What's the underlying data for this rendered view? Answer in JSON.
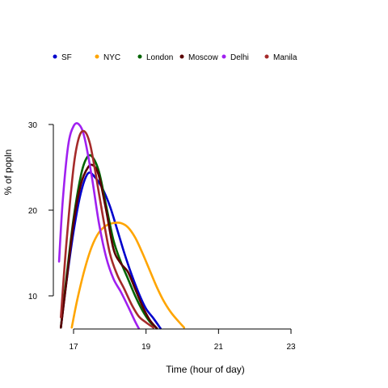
{
  "chart_data": {
    "type": "line",
    "title": "",
    "xlabel": "Time (hour of day)",
    "ylabel": "% of popln",
    "xlim": [
      16.6,
      23
    ],
    "ylim": [
      6.2,
      30.5
    ],
    "xticks": [
      17,
      19,
      21,
      23
    ],
    "yticks": [
      10,
      20,
      30
    ],
    "grid": false,
    "legend_position": "top",
    "series": [
      {
        "name": "SF",
        "color": "#0000cc",
        "x": [
          16.65,
          16.8,
          17.0,
          17.2,
          17.4,
          17.6,
          17.8,
          18.0,
          18.2,
          18.4,
          18.6,
          18.8,
          19.0,
          19.2,
          19.4
        ],
        "y": [
          6.3,
          11.5,
          17.5,
          22.0,
          24.3,
          23.8,
          22.5,
          20.5,
          17.8,
          15.0,
          12.5,
          10.3,
          8.5,
          7.4,
          6.2
        ]
      },
      {
        "name": "NYC",
        "color": "#ffa500",
        "x": [
          16.95,
          17.1,
          17.3,
          17.5,
          17.7,
          17.9,
          18.1,
          18.3,
          18.5,
          18.7,
          18.9,
          19.1,
          19.3,
          19.5,
          19.7,
          19.9,
          20.05
        ],
        "y": [
          6.3,
          9.5,
          13.0,
          15.7,
          17.4,
          18.2,
          18.5,
          18.5,
          18.0,
          16.8,
          15.0,
          13.0,
          11.0,
          9.3,
          8.0,
          7.0,
          6.3
        ]
      },
      {
        "name": "London",
        "color": "#006400",
        "x": [
          16.65,
          16.8,
          17.0,
          17.2,
          17.35,
          17.5,
          17.7,
          17.9,
          18.1,
          18.3,
          18.5,
          18.7,
          18.9,
          19.1,
          19.3
        ],
        "y": [
          6.3,
          12.0,
          19.0,
          24.0,
          26.0,
          26.3,
          24.5,
          20.5,
          16.5,
          14.0,
          12.0,
          10.0,
          8.3,
          7.0,
          6.2
        ]
      },
      {
        "name": "Moscow",
        "color": "#5a0000",
        "x": [
          16.65,
          16.8,
          17.0,
          17.2,
          17.4,
          17.55,
          17.7,
          17.9,
          18.1,
          18.3,
          18.5,
          18.7,
          18.9,
          19.1,
          19.3
        ],
        "y": [
          6.3,
          11.5,
          18.5,
          23.0,
          25.0,
          25.2,
          24.0,
          20.0,
          15.5,
          13.8,
          12.8,
          10.8,
          8.8,
          7.2,
          6.2
        ]
      },
      {
        "name": "Delhi",
        "color": "#a020f0",
        "x": [
          16.6,
          16.7,
          16.85,
          17.0,
          17.15,
          17.3,
          17.5,
          17.7,
          17.9,
          18.1,
          18.3,
          18.5,
          18.7,
          18.8
        ],
        "y": [
          14.0,
          21.0,
          27.5,
          29.8,
          30.0,
          28.5,
          24.0,
          18.5,
          14.5,
          12.0,
          10.5,
          8.8,
          7.0,
          6.2
        ]
      },
      {
        "name": "Manila",
        "color": "#a52a2a",
        "x": [
          16.65,
          16.8,
          17.0,
          17.15,
          17.3,
          17.45,
          17.6,
          17.8,
          18.0,
          18.2,
          18.4,
          18.6,
          18.8,
          19.0,
          19.2
        ],
        "y": [
          7.5,
          16.0,
          25.0,
          28.5,
          29.2,
          27.8,
          24.5,
          19.5,
          15.0,
          12.5,
          10.8,
          9.0,
          7.6,
          6.9,
          6.3
        ]
      }
    ]
  }
}
